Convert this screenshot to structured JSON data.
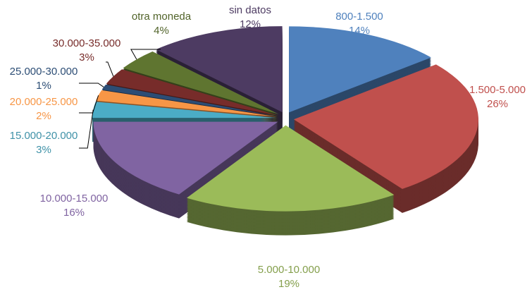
{
  "chart_data": {
    "type": "pie",
    "categories": [
      "800-1.500",
      "1.500-5.000",
      "5.000-10.000",
      "10.000-15.000",
      "15.000-20.000",
      "20.000-25.000",
      "25.000-30.000",
      "30.000-35.000",
      "otra moneda",
      "sin datos"
    ],
    "values": [
      14,
      26,
      19,
      16,
      3,
      2,
      1,
      3,
      4,
      12
    ],
    "value_labels": [
      "14%",
      "26%",
      "19%",
      "16%",
      "3%",
      "2%",
      "1%",
      "3%",
      "4%",
      "12%"
    ],
    "colors": [
      "#4f81bd",
      "#c0504d",
      "#9bbb59",
      "#8064a2",
      "#4bacc6",
      "#f79646",
      "#2c4d75",
      "#772c2a",
      "#5f7530",
      "#4d3b62"
    ]
  }
}
